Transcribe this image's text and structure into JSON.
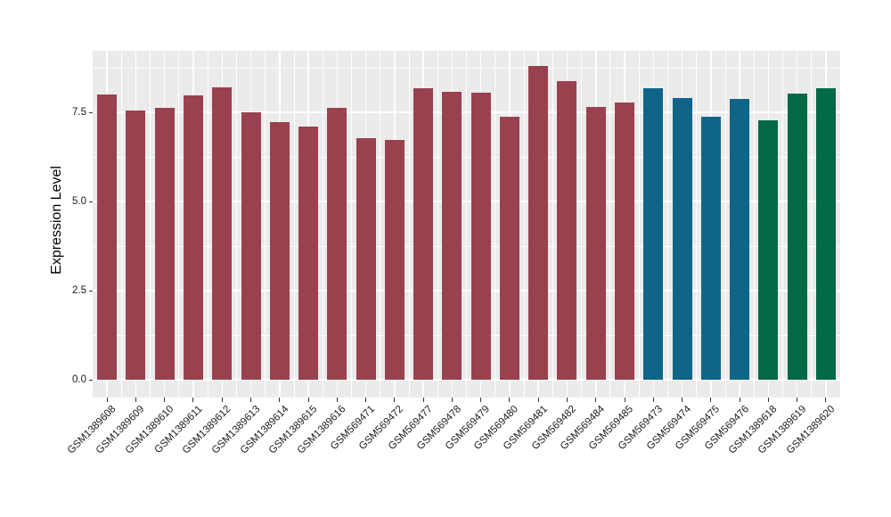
{
  "chart_data": {
    "type": "bar",
    "title": "",
    "xlabel": "",
    "ylabel": "Expression Level",
    "ylim": [
      -0.5,
      9.23
    ],
    "ytick_values": [
      0.0,
      2.5,
      5.0,
      7.5
    ],
    "ytick_labels": [
      "0.0",
      "2.5",
      "5.0",
      "7.5"
    ],
    "y_minor_breaks": [
      1.25,
      3.75,
      6.25,
      8.75
    ],
    "grid": "major and minor white gridlines on gray panel",
    "legend_position": "none",
    "categories": [
      "GSM1389608",
      "GSM1389609",
      "GSM1389610",
      "GSM1389611",
      "GSM1389612",
      "GSM1389613",
      "GSM1389614",
      "GSM1389615",
      "GSM1389616",
      "GSM569471",
      "GSM569472",
      "GSM569477",
      "GSM569478",
      "GSM569479",
      "GSM569480",
      "GSM569481",
      "GSM569482",
      "GSM569484",
      "GSM569485",
      "GSM569473",
      "GSM569474",
      "GSM569475",
      "GSM569476",
      "GSM1389618",
      "GSM1389619",
      "GSM1389620"
    ],
    "values": [
      8.0,
      7.55,
      7.63,
      7.98,
      8.2,
      7.5,
      7.22,
      7.1,
      7.62,
      6.78,
      6.73,
      8.18,
      8.07,
      8.05,
      7.37,
      8.8,
      8.38,
      7.65,
      7.78,
      8.17,
      7.9,
      7.38,
      7.87,
      7.28,
      8.03,
      8.18
    ],
    "bar_color_keys": [
      "maroon",
      "maroon",
      "maroon",
      "maroon",
      "maroon",
      "maroon",
      "maroon",
      "maroon",
      "maroon",
      "maroon",
      "maroon",
      "maroon",
      "maroon",
      "maroon",
      "maroon",
      "maroon",
      "maroon",
      "maroon",
      "maroon",
      "teal",
      "teal",
      "teal",
      "teal",
      "green",
      "green",
      "green"
    ],
    "palette": {
      "maroon": "#9A4150",
      "teal": "#0E6588",
      "green": "#006946"
    }
  },
  "style_colors": {
    "panel_background": "#EBEBEB",
    "gridline": "#FFFFFF",
    "tick_mark": "#333333",
    "text": "#1a1a1a"
  }
}
